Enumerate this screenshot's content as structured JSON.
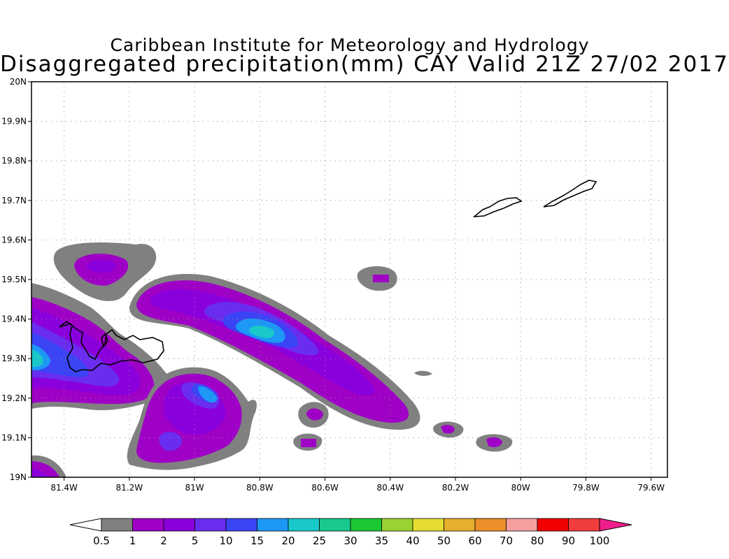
{
  "title_line1": "Caribbean Institute for Meteorology and Hydrology",
  "title_line2": "Disaggregated precipitation(mm) CAY Valid 21Z 27/02 2017",
  "map": {
    "lon_range": [
      -81.5,
      -79.55
    ],
    "lat_range": [
      19.0,
      20.0
    ],
    "grid": true,
    "lon_ticks": [
      {
        "value": -81.4,
        "label": "81.4W"
      },
      {
        "value": -81.2,
        "label": "81.2W"
      },
      {
        "value": -81.0,
        "label": "81W"
      },
      {
        "value": -80.8,
        "label": "80.8W"
      },
      {
        "value": -80.6,
        "label": "80.6W"
      },
      {
        "value": -80.4,
        "label": "80.4W"
      },
      {
        "value": -80.2,
        "label": "80.2W"
      },
      {
        "value": -80.0,
        "label": "80W"
      },
      {
        "value": -79.8,
        "label": "79.8W"
      },
      {
        "value": -79.6,
        "label": "79.6W"
      }
    ],
    "lat_ticks": [
      {
        "value": 19.0,
        "label": "19N"
      },
      {
        "value": 19.1,
        "label": "19.1N"
      },
      {
        "value": 19.2,
        "label": "19.2N"
      },
      {
        "value": 19.3,
        "label": "19.3N"
      },
      {
        "value": 19.4,
        "label": "19.4N"
      },
      {
        "value": 19.5,
        "label": "19.5N"
      },
      {
        "value": 19.6,
        "label": "19.6N"
      },
      {
        "value": 19.7,
        "label": "19.7N"
      },
      {
        "value": 19.8,
        "label": "19.8N"
      },
      {
        "value": 19.9,
        "label": "19.9N"
      },
      {
        "value": 20.0,
        "label": "20N"
      }
    ]
  },
  "colorbar": {
    "labels": [
      "0.5",
      "1",
      "2",
      "5",
      "10",
      "15",
      "20",
      "25",
      "30",
      "35",
      "40",
      "50",
      "60",
      "70",
      "80",
      "90",
      "100"
    ],
    "colors": [
      "#ffffff",
      "#808080",
      "#9f00c6",
      "#8a00dd",
      "#6a2df0",
      "#3b44f5",
      "#1d98f5",
      "#19c8c8",
      "#19c88c",
      "#19c832",
      "#9ad232",
      "#e6dc32",
      "#e6af2d",
      "#ec8e2a",
      "#f5a0a0",
      "#f00000",
      "#f03c3c",
      "#f01e8c"
    ]
  },
  "chart_data": {
    "type": "heatmap",
    "title": "Caribbean Institute for Meteorology and Hydrology",
    "subtitle": "Disaggregated precipitation(mm) CAY Valid 21Z 27/02 2017",
    "xlabel": "",
    "ylabel": "",
    "xlim": [
      -81.5,
      -79.55
    ],
    "ylim": [
      19.0,
      20.0
    ],
    "units": "mm",
    "levels": [
      0.5,
      1,
      2,
      5,
      10,
      15,
      20,
      25,
      30,
      35,
      40,
      50,
      60,
      70,
      80,
      90,
      100
    ],
    "precipitation_cells": [
      {
        "lon": -80.76,
        "lat": 19.365,
        "value": 20
      },
      {
        "lon": -81.48,
        "lat": 19.3,
        "value": 20
      },
      {
        "lon": -80.94,
        "lat": 19.215,
        "value": 15
      },
      {
        "lon": -81.3,
        "lat": 19.53,
        "value": 2
      },
      {
        "lon": -80.39,
        "lat": 19.51,
        "value": 1
      },
      {
        "lon": -80.4,
        "lat": 19.15,
        "value": 2
      },
      {
        "lon": -80.05,
        "lat": 19.09,
        "value": 1
      },
      {
        "lon": -80.62,
        "lat": 19.09,
        "value": 1
      },
      {
        "lon": -80.2,
        "lat": 19.125,
        "value": 1
      }
    ]
  }
}
